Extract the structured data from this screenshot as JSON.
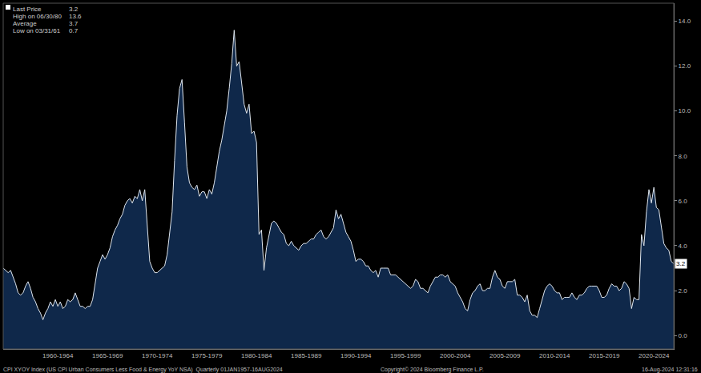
{
  "chart_data": {
    "type": "area",
    "color": "#dfe6ee",
    "grid": false,
    "ylim": [
      -0.6,
      14.8
    ],
    "yticks": [
      {
        "value": 0,
        "label": "0.0"
      },
      {
        "value": 2,
        "label": "2.0"
      },
      {
        "value": 4,
        "label": "4.0"
      },
      {
        "value": 6,
        "label": "6.0"
      },
      {
        "value": 8,
        "label": "8.0"
      },
      {
        "value": 10,
        "label": "10.0"
      },
      {
        "value": 12,
        "label": "12.0"
      },
      {
        "value": 14,
        "label": "14.0"
      }
    ],
    "categories": [
      null,
      null,
      null,
      null,
      null,
      null,
      null,
      null,
      null,
      null,
      null,
      null,
      null,
      null,
      null,
      null,
      null,
      null,
      null,
      null,
      null,
      null,
      "1960-1964",
      null,
      null,
      null,
      null,
      null,
      null,
      null,
      null,
      null,
      null,
      null,
      null,
      null,
      null,
      null,
      null,
      null,
      null,
      null,
      "1965-1969",
      null,
      null,
      null,
      null,
      null,
      null,
      null,
      null,
      null,
      null,
      null,
      null,
      null,
      null,
      null,
      null,
      null,
      null,
      null,
      "1970-1974",
      null,
      null,
      null,
      null,
      null,
      null,
      null,
      null,
      null,
      null,
      null,
      null,
      null,
      null,
      null,
      null,
      null,
      null,
      null,
      "1975-1979",
      null,
      null,
      null,
      null,
      null,
      null,
      null,
      null,
      null,
      null,
      null,
      null,
      null,
      null,
      null,
      null,
      null,
      null,
      null,
      "1980-1984",
      null,
      null,
      null,
      null,
      null,
      null,
      null,
      null,
      null,
      null,
      null,
      null,
      null,
      null,
      null,
      null,
      null,
      null,
      null,
      "1985-1989",
      null,
      null,
      null,
      null,
      null,
      null,
      null,
      null,
      null,
      null,
      null,
      null,
      null,
      null,
      null,
      null,
      null,
      null,
      null,
      "1990-1994",
      null,
      null,
      null,
      null,
      null,
      null,
      null,
      null,
      null,
      null,
      null,
      null,
      null,
      null,
      null,
      null,
      null,
      null,
      null,
      "1995-1999",
      null,
      null,
      null,
      null,
      null,
      null,
      null,
      null,
      null,
      null,
      null,
      null,
      null,
      null,
      null,
      null,
      null,
      null,
      null,
      "2000-2004",
      null,
      null,
      null,
      null,
      null,
      null,
      null,
      null,
      null,
      null,
      null,
      null,
      null,
      null,
      null,
      null,
      null,
      null,
      null,
      "2005-2009",
      null,
      null,
      null,
      null,
      null,
      null,
      null,
      null,
      null,
      null,
      null,
      null,
      null,
      null,
      null,
      null,
      null,
      null,
      null,
      "2010-2014",
      null,
      null,
      null,
      null,
      null,
      null,
      null,
      null,
      null,
      null,
      null,
      null,
      null,
      null,
      null,
      null,
      null,
      null,
      null,
      "2015-2019",
      null,
      null,
      null,
      null,
      null,
      null,
      null,
      null,
      null,
      null,
      null,
      null,
      null,
      null,
      null,
      null,
      null,
      null,
      null,
      "2020-2024",
      null,
      null,
      null,
      null,
      null,
      null,
      null,
      null
    ],
    "values": [
      3.0,
      2.9,
      2.8,
      2.9,
      2.6,
      2.3,
      1.9,
      1.8,
      1.9,
      2.2,
      2.4,
      2.1,
      1.7,
      1.5,
      1.2,
      1.0,
      0.7,
      1.0,
      1.2,
      1.5,
      1.3,
      1.6,
      1.3,
      1.5,
      1.2,
      1.3,
      1.6,
      1.5,
      1.6,
      1.9,
      1.6,
      1.3,
      1.3,
      1.2,
      1.3,
      1.3,
      1.6,
      2.3,
      3.0,
      3.3,
      3.6,
      3.4,
      3.6,
      3.9,
      4.4,
      4.7,
      4.9,
      5.2,
      5.4,
      5.8,
      6.0,
      6.1,
      5.9,
      6.2,
      6.1,
      6.5,
      6.0,
      6.5,
      5.0,
      3.3,
      3.0,
      2.8,
      2.8,
      2.9,
      3.0,
      3.1,
      3.6,
      4.6,
      5.5,
      7.8,
      9.8,
      11.0,
      11.4,
      9.5,
      7.5,
      6.8,
      6.6,
      6.5,
      6.7,
      6.2,
      6.4,
      6.4,
      6.1,
      6.5,
      6.3,
      6.8,
      7.5,
      8.2,
      8.7,
      9.3,
      10.0,
      11.0,
      12.1,
      13.6,
      12.0,
      12.2,
      11.2,
      10.3,
      9.9,
      10.3,
      9.0,
      9.1,
      8.6,
      4.5,
      4.7,
      2.9,
      3.9,
      4.5,
      5.0,
      5.1,
      5.0,
      4.8,
      4.6,
      4.5,
      4.1,
      4.0,
      4.2,
      4.0,
      3.9,
      3.8,
      4.0,
      4.1,
      4.1,
      4.2,
      4.3,
      4.3,
      4.5,
      4.6,
      4.7,
      4.4,
      4.3,
      4.4,
      4.6,
      4.8,
      5.6,
      5.2,
      5.4,
      5.0,
      4.6,
      4.4,
      4.2,
      3.8,
      3.3,
      3.4,
      3.4,
      3.3,
      3.1,
      3.1,
      2.9,
      2.8,
      2.9,
      2.6,
      3.0,
      3.0,
      3.0,
      3.0,
      2.7,
      2.7,
      2.7,
      2.6,
      2.5,
      2.4,
      2.3,
      2.2,
      2.1,
      2.2,
      2.5,
      2.4,
      2.1,
      2.1,
      2.0,
      1.9,
      2.2,
      2.4,
      2.6,
      2.6,
      2.7,
      2.7,
      2.6,
      2.7,
      2.4,
      2.3,
      2.2,
      1.9,
      1.7,
      1.5,
      1.2,
      1.1,
      1.6,
      1.9,
      2.0,
      2.2,
      2.3,
      2.0,
      2.0,
      2.1,
      2.1,
      2.6,
      2.9,
      2.6,
      2.5,
      2.2,
      2.1,
      2.4,
      2.4,
      2.4,
      2.5,
      1.8,
      1.8,
      1.7,
      1.5,
      1.8,
      1.1,
      0.9,
      0.9,
      0.8,
      1.2,
      1.6,
      2.0,
      2.2,
      2.3,
      2.2,
      2.0,
      1.9,
      1.9,
      1.6,
      1.7,
      1.7,
      1.7,
      1.9,
      1.7,
      1.6,
      1.8,
      1.8,
      1.9,
      2.1,
      2.2,
      2.2,
      2.2,
      2.2,
      2.0,
      1.7,
      1.7,
      1.8,
      2.1,
      2.3,
      2.2,
      2.2,
      2.0,
      2.1,
      2.4,
      2.3,
      2.1,
      1.2,
      1.7,
      1.6,
      1.6,
      4.5,
      4.0,
      5.5,
      6.5,
      5.9,
      6.6,
      5.7,
      5.6,
      4.8,
      4.1,
      3.9,
      3.8,
      3.3,
      3.2
    ],
    "annotations": [
      {
        "text": "Last Price",
        "value": 3.2
      },
      {
        "text": "High on 06/30/80",
        "value": 13.6
      },
      {
        "text": "Average",
        "value": 3.7
      },
      {
        "text": "Low on 03/31/61",
        "value": 0.7
      }
    ],
    "footer": {
      "left": "CPI XYOY Index (US CPI Urban Consumers Less Food & Energy YoY NSA)  Quarterly 01JAN1957-16AUG2024",
      "center": "Copyright© 2024 Bloomberg Finance L.P.",
      "right": "16-Aug-2024 12:31:16"
    }
  }
}
